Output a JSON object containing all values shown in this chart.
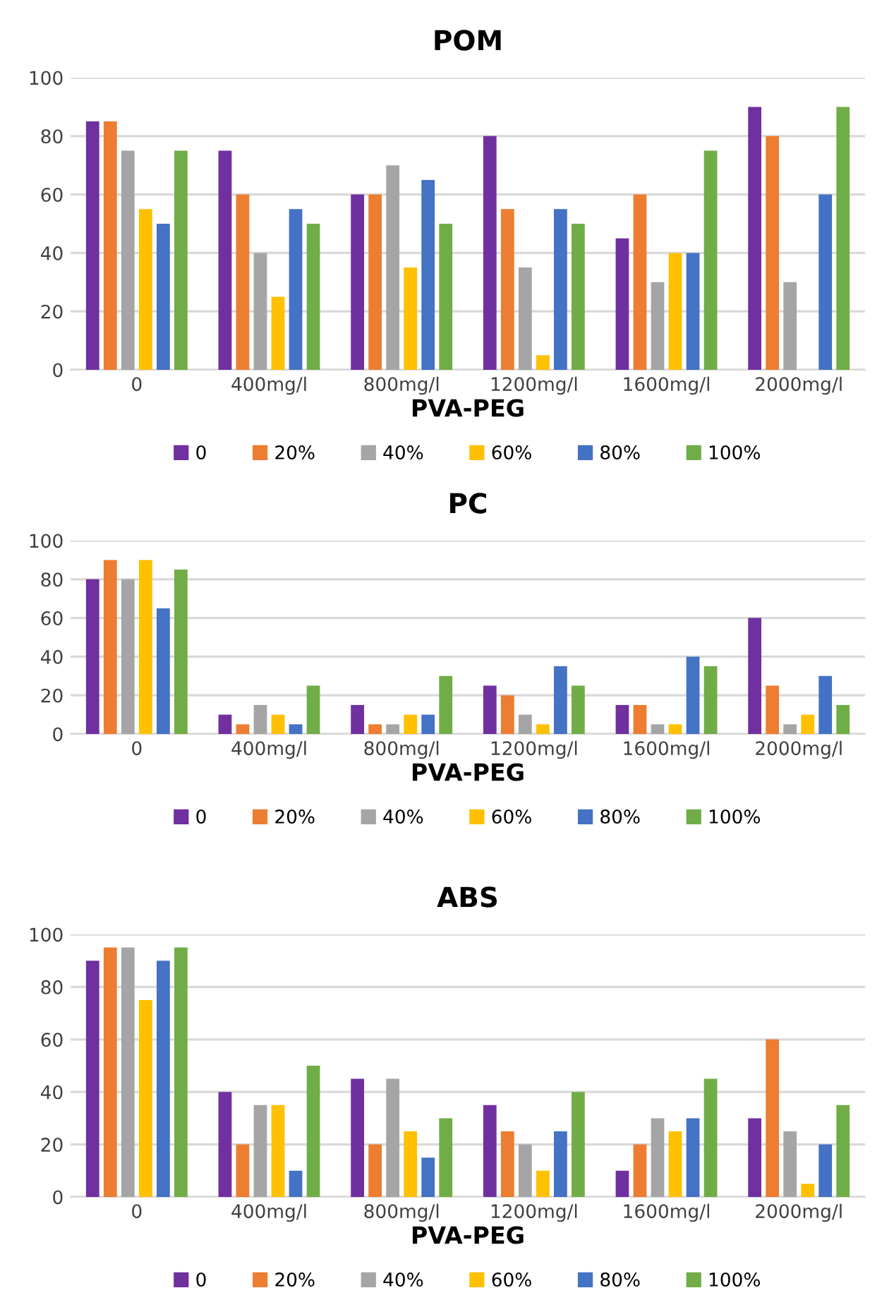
{
  "chart_data": [
    {
      "type": "bar",
      "title": "POM",
      "xlabel": "PVA-PEG",
      "categories": [
        "0",
        "400mg/l",
        "800mg/l",
        "1200mg/l",
        "1600mg/l",
        "2000mg/l"
      ],
      "ylim": [
        0,
        100
      ],
      "yticks": [
        0,
        20,
        40,
        60,
        80,
        100
      ],
      "grid": "y",
      "legend": "bottom",
      "series": [
        {
          "name": "0",
          "color": "#7030a0",
          "values": [
            85,
            75,
            60,
            80,
            45,
            90
          ]
        },
        {
          "name": "20%",
          "color": "#ed7d31",
          "values": [
            85,
            60,
            60,
            55,
            60,
            80
          ]
        },
        {
          "name": "40%",
          "color": "#a5a5a5",
          "values": [
            75,
            40,
            70,
            35,
            30,
            30
          ]
        },
        {
          "name": "60%",
          "color": "#ffc000",
          "values": [
            55,
            25,
            35,
            5,
            40,
            null
          ]
        },
        {
          "name": "80%",
          "color": "#4472c4",
          "values": [
            50,
            55,
            65,
            55,
            40,
            60
          ]
        },
        {
          "name": "100%",
          "color": "#70ad47",
          "values": [
            75,
            50,
            50,
            50,
            75,
            90
          ]
        }
      ]
    },
    {
      "type": "bar",
      "title": "PC",
      "xlabel": "PVA-PEG",
      "categories": [
        "0",
        "400mg/l",
        "800mg/l",
        "1200mg/l",
        "1600mg/l",
        "2000mg/l"
      ],
      "ylim": [
        0,
        100
      ],
      "yticks": [
        0,
        20,
        40,
        60,
        80,
        100
      ],
      "grid": "y",
      "legend": "bottom",
      "series": [
        {
          "name": "0",
          "color": "#7030a0",
          "values": [
            80,
            10,
            15,
            25,
            15,
            60
          ]
        },
        {
          "name": "20%",
          "color": "#ed7d31",
          "values": [
            90,
            5,
            5,
            20,
            15,
            25
          ]
        },
        {
          "name": "40%",
          "color": "#a5a5a5",
          "values": [
            80,
            15,
            5,
            10,
            5,
            5
          ]
        },
        {
          "name": "60%",
          "color": "#ffc000",
          "values": [
            90,
            10,
            10,
            5,
            5,
            10
          ]
        },
        {
          "name": "80%",
          "color": "#4472c4",
          "values": [
            65,
            5,
            10,
            35,
            40,
            30
          ]
        },
        {
          "name": "100%",
          "color": "#70ad47",
          "values": [
            85,
            25,
            30,
            25,
            35,
            15
          ]
        }
      ]
    },
    {
      "type": "bar",
      "title": "ABS",
      "xlabel": "PVA-PEG",
      "categories": [
        "0",
        "400mg/l",
        "800mg/l",
        "1200mg/l",
        "1600mg/l",
        "2000mg/l"
      ],
      "ylim": [
        0,
        100
      ],
      "yticks": [
        0,
        20,
        40,
        60,
        80,
        100
      ],
      "grid": "y",
      "legend": "bottom",
      "series": [
        {
          "name": "0",
          "color": "#7030a0",
          "values": [
            90,
            40,
            45,
            35,
            10,
            30
          ]
        },
        {
          "name": "20%",
          "color": "#ed7d31",
          "values": [
            95,
            20,
            20,
            25,
            20,
            60
          ]
        },
        {
          "name": "40%",
          "color": "#a5a5a5",
          "values": [
            95,
            35,
            45,
            20,
            30,
            25
          ]
        },
        {
          "name": "60%",
          "color": "#ffc000",
          "values": [
            75,
            35,
            25,
            10,
            25,
            5
          ]
        },
        {
          "name": "80%",
          "color": "#4472c4",
          "values": [
            90,
            10,
            15,
            25,
            30,
            20
          ]
        },
        {
          "name": "100%",
          "color": "#70ad47",
          "values": [
            95,
            50,
            30,
            40,
            45,
            35
          ]
        }
      ]
    }
  ]
}
